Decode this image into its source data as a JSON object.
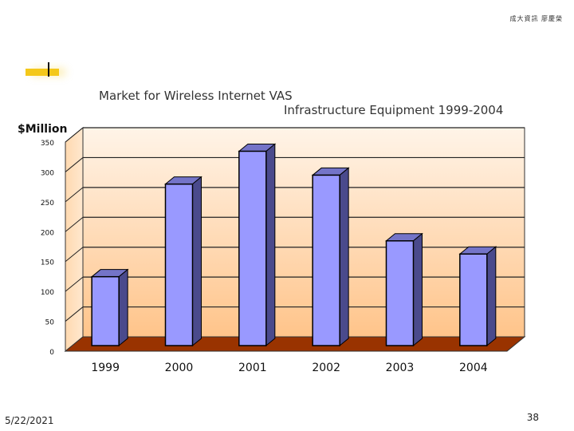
{
  "slide": {
    "credit": "成大資訊 廖慶榮",
    "date": "5/22/2021",
    "page_number": "38"
  },
  "colors": {
    "accent": "#f4c81a",
    "bar_front": "#9999ff",
    "bar_side": "#4a4a8c",
    "bar_top": "#7474c8",
    "floor": "#993300",
    "wall_top": "#fff4e8",
    "wall_bottom": "#ffc48a"
  },
  "chart_data": {
    "type": "bar",
    "title": "Market for Wireless Internet VAS",
    "subtitle": "Infrastructure  Equipment 1999-2004",
    "ylabel": "$Million",
    "xlabel": "",
    "categories": [
      "1999",
      "2000",
      "2001",
      "2002",
      "2003",
      "2004"
    ],
    "values": [
      130,
      285,
      340,
      300,
      190,
      168
    ],
    "ylim": [
      0,
      350
    ],
    "yticks": [
      "0",
      "50",
      "100",
      "150",
      "200",
      "250",
      "300",
      "350"
    ],
    "grid": true,
    "legend": "none",
    "style": "3d"
  }
}
